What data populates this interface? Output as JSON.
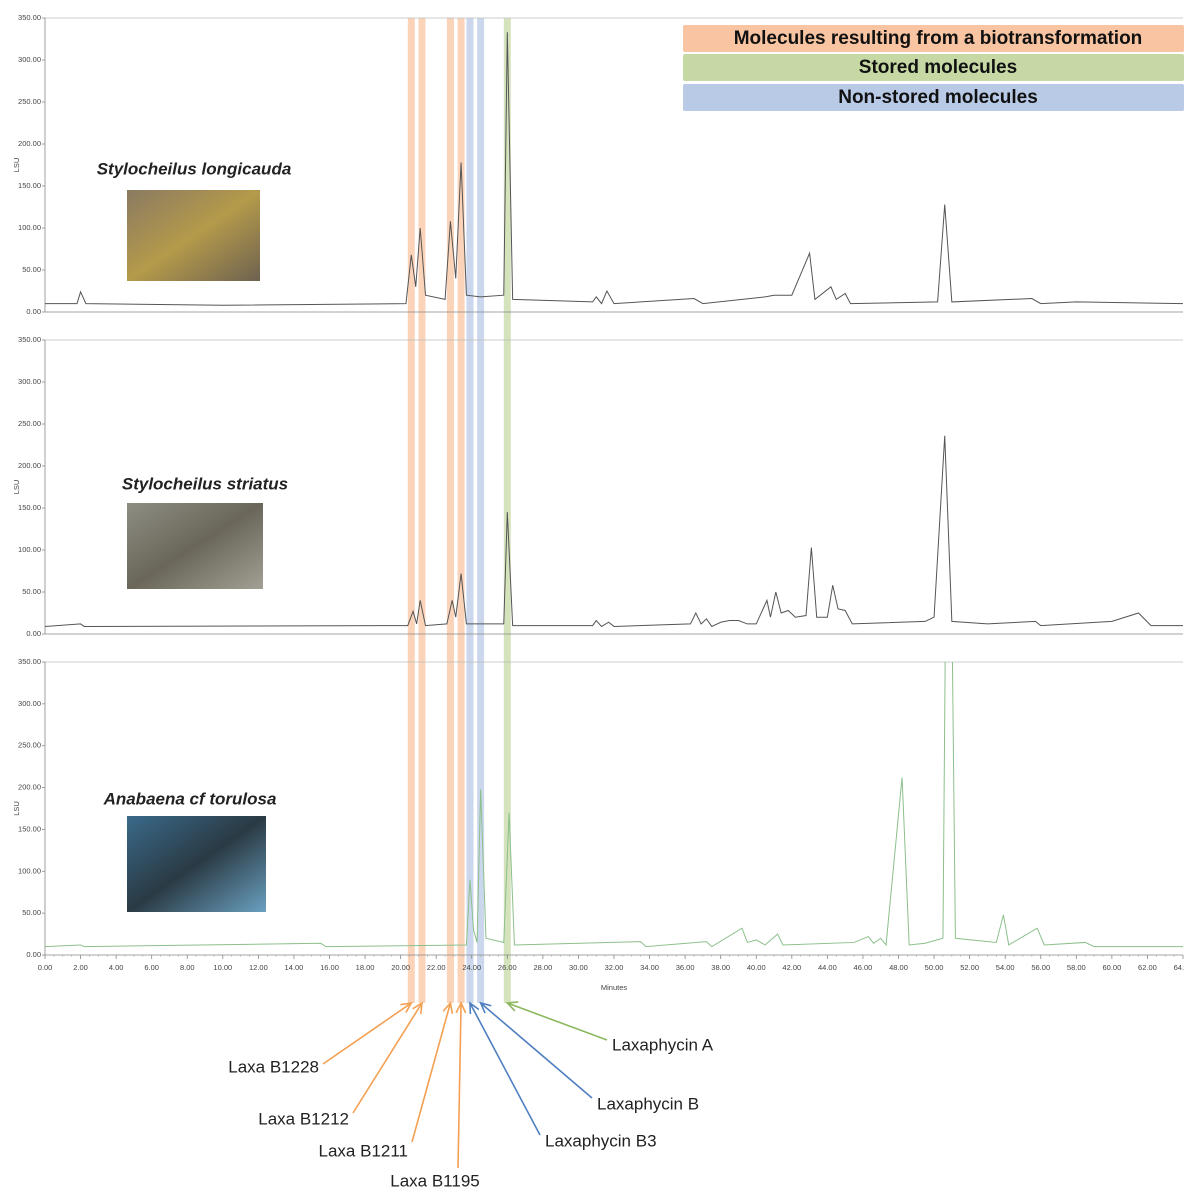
{
  "chart_data": [
    {
      "type": "line",
      "title": "Stylocheilus longicauda",
      "ylabel": "LSU",
      "color": "#555555",
      "xlim": [
        0,
        64
      ],
      "ylim": [
        0,
        350
      ],
      "yticks": [
        {
          "value": 0,
          "label": "0.00"
        },
        {
          "value": 50,
          "label": "50.00"
        },
        {
          "value": 100,
          "label": "100.00"
        },
        {
          "value": 150,
          "label": "150.00"
        },
        {
          "value": 200,
          "label": "200.00"
        },
        {
          "value": 250,
          "label": "250.00"
        },
        {
          "value": 300,
          "label": "300.00"
        },
        {
          "value": 350,
          "label": "350.00"
        }
      ],
      "x": [
        0,
        1.8,
        2.0,
        2.3,
        10,
        20.3,
        20.6,
        20.85,
        21.1,
        21.4,
        22.5,
        22.8,
        23.1,
        23.4,
        23.7,
        24.5,
        25.8,
        26.0,
        26.3,
        30.8,
        31.0,
        31.3,
        31.6,
        32,
        36.5,
        37,
        40.5,
        41,
        42,
        43.0,
        43.3,
        44.2,
        44.5,
        45,
        45.3,
        50.2,
        50.6,
        51,
        55.5,
        56,
        58,
        64
      ],
      "values": [
        10,
        10,
        24,
        10,
        8,
        10,
        68,
        30,
        100,
        20,
        15,
        108,
        40,
        178,
        20,
        18,
        20,
        333,
        15,
        12,
        18,
        10,
        25,
        10,
        16,
        10,
        18,
        20,
        20,
        70,
        15,
        30,
        15,
        22,
        10,
        12,
        128,
        12,
        16,
        10,
        12,
        10
      ]
    },
    {
      "type": "line",
      "title": "Stylocheilus striatus",
      "ylabel": "LSU",
      "color": "#555555",
      "xlim": [
        0,
        64
      ],
      "ylim": [
        0,
        350
      ],
      "yticks": [
        {
          "value": 0,
          "label": "0.00"
        },
        {
          "value": 50,
          "label": "50.00"
        },
        {
          "value": 100,
          "label": "100.00"
        },
        {
          "value": 150,
          "label": "150.00"
        },
        {
          "value": 200,
          "label": "200.00"
        },
        {
          "value": 250,
          "label": "250.00"
        },
        {
          "value": 300,
          "label": "300.00"
        },
        {
          "value": 350,
          "label": "350.00"
        }
      ],
      "x": [
        0,
        2,
        2.2,
        20.4,
        20.7,
        20.9,
        21.1,
        21.4,
        22.6,
        22.9,
        23.1,
        23.4,
        23.7,
        25.8,
        26.0,
        26.3,
        30.8,
        31,
        31.3,
        31.7,
        32,
        36.3,
        36.6,
        36.9,
        37.2,
        37.5,
        38,
        38.5,
        39,
        39.5,
        40,
        40.6,
        40.8,
        41.1,
        41.4,
        41.8,
        42.2,
        42.8,
        43.1,
        43.4,
        44,
        44.3,
        44.6,
        45,
        45.4,
        49.5,
        50,
        50.6,
        51,
        53,
        55.7,
        56,
        60,
        61.5,
        62.2,
        64
      ],
      "values": [
        9,
        12,
        9,
        10,
        27,
        12,
        40,
        10,
        12,
        40,
        20,
        72,
        12,
        12,
        145,
        10,
        10,
        16,
        9,
        14,
        9,
        12,
        25,
        12,
        18,
        9,
        14,
        16,
        16,
        12,
        12,
        40,
        20,
        50,
        25,
        28,
        20,
        22,
        103,
        20,
        20,
        58,
        30,
        28,
        12,
        15,
        20,
        236,
        15,
        12,
        15,
        10,
        15,
        25,
        10,
        10
      ]
    },
    {
      "type": "line",
      "title": "Anabaena cf torulosa",
      "ylabel": "LSU",
      "xlabel": "Minutes",
      "color": "#8cc08c",
      "xlim": [
        0,
        64
      ],
      "ylim": [
        0,
        350
      ],
      "yticks": [
        {
          "value": 0,
          "label": "0.00"
        },
        {
          "value": 50,
          "label": "50.00"
        },
        {
          "value": 100,
          "label": "100.00"
        },
        {
          "value": 150,
          "label": "150.00"
        },
        {
          "value": 200,
          "label": "200.00"
        },
        {
          "value": 250,
          "label": "250.00"
        },
        {
          "value": 300,
          "label": "300.00"
        },
        {
          "value": 350,
          "label": "350.00"
        }
      ],
      "xticks": [
        {
          "value": 0,
          "label": "0.00"
        },
        {
          "value": 2,
          "label": "2.00"
        },
        {
          "value": 4,
          "label": "4.00"
        },
        {
          "value": 6,
          "label": "6.00"
        },
        {
          "value": 8,
          "label": "8.00"
        },
        {
          "value": 10,
          "label": "10.00"
        },
        {
          "value": 12,
          "label": "12.00"
        },
        {
          "value": 14,
          "label": "14.00"
        },
        {
          "value": 16,
          "label": "16.00"
        },
        {
          "value": 18,
          "label": "18.00"
        },
        {
          "value": 20,
          "label": "20.00"
        },
        {
          "value": 22,
          "label": "22.00"
        },
        {
          "value": 24,
          "label": "24.00"
        },
        {
          "value": 26,
          "label": "26.00"
        },
        {
          "value": 28,
          "label": "28.00"
        },
        {
          "value": 30,
          "label": "30.00"
        },
        {
          "value": 32,
          "label": "32.00"
        },
        {
          "value": 34,
          "label": "34.00"
        },
        {
          "value": 36,
          "label": "36.00"
        },
        {
          "value": 38,
          "label": "38.00"
        },
        {
          "value": 40,
          "label": "40.00"
        },
        {
          "value": 42,
          "label": "42.00"
        },
        {
          "value": 44,
          "label": "44.00"
        },
        {
          "value": 46,
          "label": "46.00"
        },
        {
          "value": 48,
          "label": "48.00"
        },
        {
          "value": 50,
          "label": "50.00"
        },
        {
          "value": 52,
          "label": "52.00"
        },
        {
          "value": 54,
          "label": "54.00"
        },
        {
          "value": 56,
          "label": "56.00"
        },
        {
          "value": 58,
          "label": "58.00"
        },
        {
          "value": 60,
          "label": "60.00"
        },
        {
          "value": 62,
          "label": "62.00"
        },
        {
          "value": 64,
          "label": "64.00"
        }
      ],
      "x": [
        0,
        2,
        2.2,
        15.5,
        15.8,
        23.7,
        23.9,
        24.1,
        24.3,
        24.5,
        24.8,
        25.8,
        26.1,
        26.4,
        33.5,
        33.8,
        37.2,
        37.5,
        39.2,
        39.5,
        40,
        40.5,
        41.2,
        41.5,
        45.5,
        46.3,
        46.6,
        47,
        47.3,
        48.2,
        48.6,
        49.5,
        50.5,
        50.65,
        51.0,
        51.2,
        53.5,
        53.9,
        54.2,
        55.8,
        56.2,
        58.5,
        59,
        64
      ],
      "values": [
        10,
        12,
        10,
        14,
        10,
        12,
        90,
        30,
        15,
        198,
        20,
        15,
        170,
        12,
        16,
        10,
        16,
        10,
        32,
        15,
        18,
        12,
        25,
        12,
        15,
        22,
        14,
        20,
        12,
        212,
        12,
        14,
        20,
        420,
        420,
        20,
        15,
        48,
        12,
        32,
        12,
        15,
        10,
        10
      ]
    }
  ],
  "highlights": [
    {
      "label": "Molecules resulting from a biotransformation",
      "color": "#f8c4a2",
      "arrow_color": "#f4a052",
      "bands": [
        {
          "x": 20.6,
          "label": "Laxa B1228"
        },
        {
          "x": 21.2,
          "label": "Laxa B1212"
        },
        {
          "x": 22.8,
          "label": "Laxa B1211"
        },
        {
          "x": 23.4,
          "label": "Laxa B1195"
        }
      ]
    },
    {
      "label": "Stored molecules",
      "color": "#c6d9a4",
      "arrow_color": "#8cb860",
      "bands": [
        {
          "x": 26.0,
          "label": "Laxaphycin A"
        }
      ]
    },
    {
      "label": "Non-stored molecules",
      "color": "#b9cae6",
      "arrow_color": "#4f7fc0",
      "bands": [
        {
          "x": 23.9,
          "label": "Laxaphycin B3"
        },
        {
          "x": 24.5,
          "label": "Laxaphycin B"
        }
      ]
    }
  ]
}
